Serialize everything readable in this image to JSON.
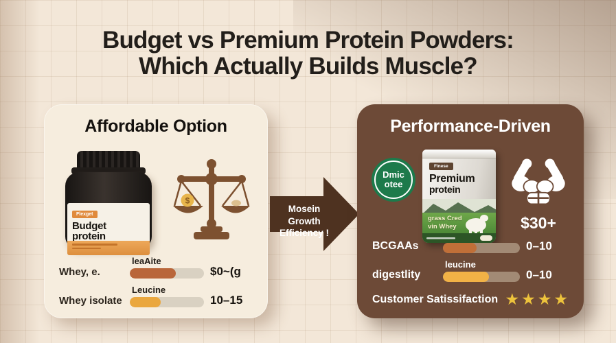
{
  "title": {
    "line1": "Budget vs Premium Protein Powders:",
    "line2": "Which Actually Builds Muscle?"
  },
  "arrow": {
    "line1": "Mosein Growth",
    "line2": "Efficiency !"
  },
  "left_panel": {
    "title": "Affordable Option",
    "jar": {
      "badge": "Flexget",
      "name_line1": "Budget",
      "name_line2": "protein"
    },
    "rows": [
      {
        "label": "Whey, e.",
        "bar_label": "leaAite",
        "value": "$0~(g",
        "pct": 62,
        "fill": "#b9663a"
      },
      {
        "label": "Whey isolate",
        "bar_label": "Leucine",
        "value": "10–15",
        "pct": 42,
        "fill": "#eaa73e"
      }
    ]
  },
  "right_panel": {
    "title": "Performance-Driven",
    "badge": {
      "line1": "Dmic",
      "line2": "otee"
    },
    "bag": {
      "tag": "Finese",
      "name_line1": "Premium",
      "name_line2": "protein",
      "desc_line1": "grass Cred",
      "desc_line2": "vin Whey"
    },
    "price": "$30+",
    "rows": [
      {
        "label": "BCGAAs",
        "bar_label": "",
        "value": "0–10",
        "pct": 44,
        "fill": "#c06f38"
      },
      {
        "label": "digestlity",
        "bar_label": "leucine",
        "value": "0–10",
        "pct": 60,
        "fill": "#f2b246"
      }
    ],
    "satisfaction": {
      "label": "Customer Satissifaction",
      "stars": "★★★★"
    }
  },
  "colors": {
    "background": "#f3e7d8",
    "left_panel_bg": "#f6edde",
    "right_panel_bg": "#6d4a37",
    "arrow_brown": "#4e3220",
    "badge_green": "#1d7a4b",
    "star_gold": "#edc33c",
    "jar_badge_orange": "#e08a3c"
  }
}
